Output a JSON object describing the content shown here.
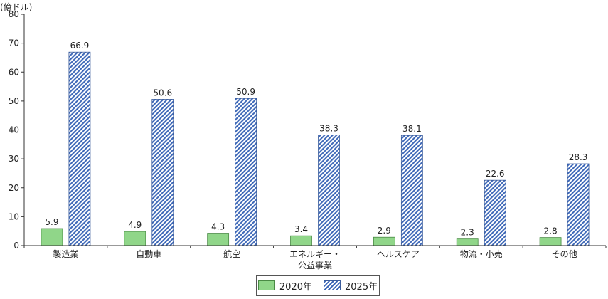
{
  "chart_data": {
    "type": "bar",
    "unit_label": "(億ドル)",
    "ylim": [
      0,
      80
    ],
    "yticks": [
      0,
      10,
      20,
      30,
      40,
      50,
      60,
      70,
      80
    ],
    "grid": false,
    "legend_position": "bottom-center",
    "categories": [
      [
        "製造業"
      ],
      [
        "自動車"
      ],
      [
        "航空"
      ],
      [
        "エネルギー・",
        "公益事業"
      ],
      [
        "ヘルスケア"
      ],
      [
        "物流・小売"
      ],
      [
        "その他"
      ]
    ],
    "series": [
      {
        "name": "2020年",
        "color": "#90d689",
        "pattern": "solid",
        "values": [
          5.9,
          4.9,
          4.3,
          3.4,
          2.9,
          2.3,
          2.8
        ]
      },
      {
        "name": "2025年",
        "color": "#3f69b8",
        "pattern": "diagonal-hatch",
        "values": [
          66.9,
          50.6,
          50.9,
          38.3,
          38.1,
          22.6,
          28.3
        ]
      }
    ]
  }
}
